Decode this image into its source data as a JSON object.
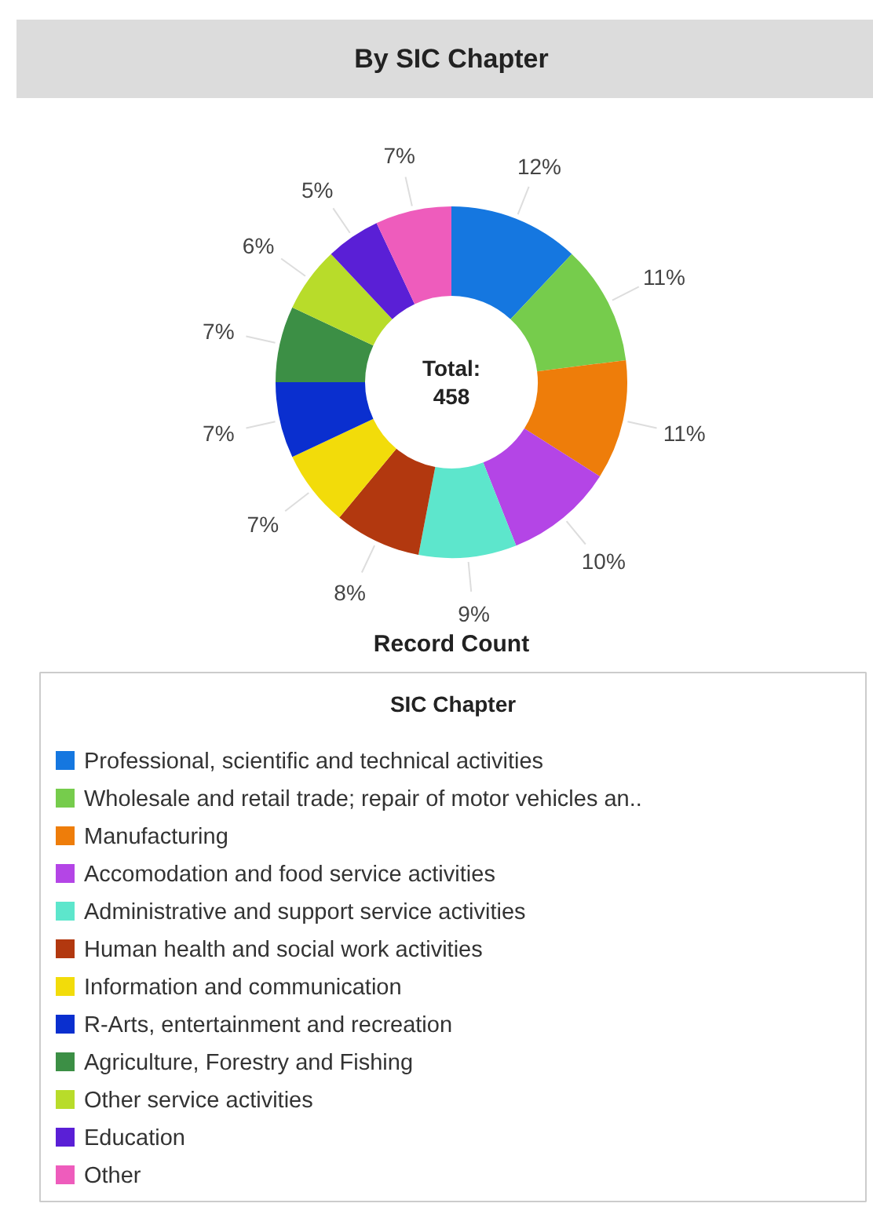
{
  "chart_data": {
    "type": "donut",
    "title": "By SIC Chapter",
    "legend_title": "SIC Chapter",
    "legend": "bottom",
    "annotations": [
      "Total:\n458",
      "Record Count"
    ],
    "categories": [
      "Professional, scientific and technical activities",
      "Wholesale and retail trade; repair of motor vehicles an..",
      "Manufacturing",
      "Accomodation and food service activities",
      "Administrative and support service activities",
      "Human health and social work activities",
      "Information and communication",
      "R-Arts, entertainment and recreation",
      "Agriculture, Forestry and Fishing",
      "Other service activities",
      "Education",
      "Other"
    ],
    "values": [
      12,
      11,
      11,
      10,
      9,
      8,
      7,
      7,
      7,
      6,
      5,
      7
    ],
    "value_labels": [
      "12%",
      "11%",
      "11%",
      "10%",
      "9%",
      "8%",
      "7%",
      "7%",
      "7%",
      "6%",
      "5%",
      "7%"
    ],
    "colors": [
      "#1577e0",
      "#76cc4c",
      "#ee7d0a",
      "#b445e6",
      "#5de6cc",
      "#b2380f",
      "#f2dc0a",
      "#0a2fcf",
      "#3c8f45",
      "#b8dc2a",
      "#5a1fd6",
      "#ee5cbc"
    ]
  }
}
